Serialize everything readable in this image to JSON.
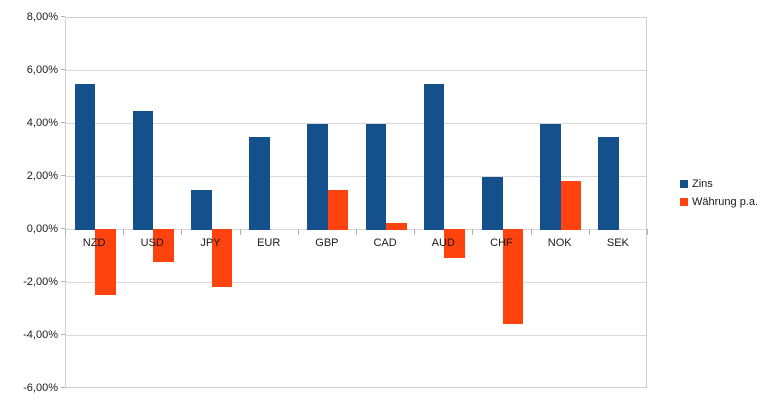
{
  "chart_data": {
    "type": "bar",
    "title": "",
    "categories": [
      "NZD",
      "USD",
      "JPY",
      "EUR",
      "GBP",
      "CAD",
      "AUD",
      "CHF",
      "NOK",
      "SEK"
    ],
    "series": [
      {
        "name": "Zins",
        "color": "#14508C",
        "values": [
          5.5,
          4.5,
          1.5,
          3.5,
          4.0,
          4.0,
          5.5,
          2.0,
          4.0,
          3.5
        ]
      },
      {
        "name": "Währung p.a.",
        "color": "#FF420E",
        "values": [
          -2.5,
          -1.25,
          -2.2,
          0,
          1.5,
          0.25,
          -1.1,
          -3.6,
          1.85,
          0
        ]
      }
    ],
    "ylim": [
      -6,
      8
    ],
    "ytick_step": 2,
    "ytick_labels": [
      "8,00%",
      "6,00%",
      "4,00%",
      "2,00%",
      "0,00%",
      "-2,00%",
      "-4,00%",
      "-6,00%"
    ],
    "grid": true,
    "legend_position": "right",
    "gridline_color": "#d9d9d9"
  }
}
